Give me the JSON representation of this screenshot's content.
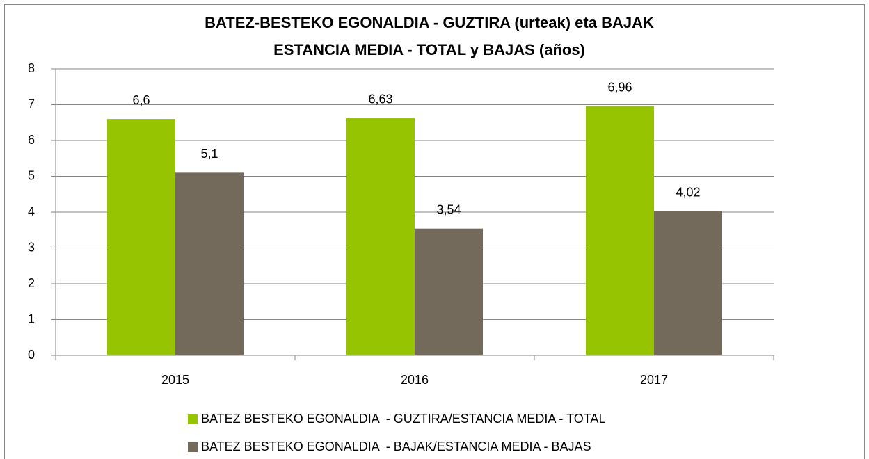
{
  "chart_data": {
    "type": "bar",
    "title": "BATEZ-BESTEKO EGONALDIA - GUZTIRA (urteak) eta BAJAK",
    "subtitle": "ESTANCIA MEDIA - TOTAL y BAJAS (años)",
    "categories": [
      "2015",
      "2016",
      "2017"
    ],
    "series": [
      {
        "name": "BATEZ BESTEKO EGONALDIA  - GUZTIRA/ESTANCIA MEDIA - TOTAL",
        "color": "#96c400",
        "values": [
          6.6,
          6.63,
          6.96
        ],
        "value_labels": [
          "6,6",
          "6,63",
          "6,96"
        ]
      },
      {
        "name": "BATEZ BESTEKO EGONALDIA  - BAJAK/ESTANCIA MEDIA - BAJAS",
        "color": "#746a5b",
        "values": [
          5.1,
          3.54,
          4.02
        ],
        "value_labels": [
          "5,1",
          "3,54",
          "4,02"
        ]
      }
    ],
    "ylim": [
      0,
      8
    ],
    "yticks": [
      0,
      1,
      2,
      3,
      4,
      5,
      6,
      7,
      8
    ],
    "grid": true,
    "legend": "bottom"
  }
}
